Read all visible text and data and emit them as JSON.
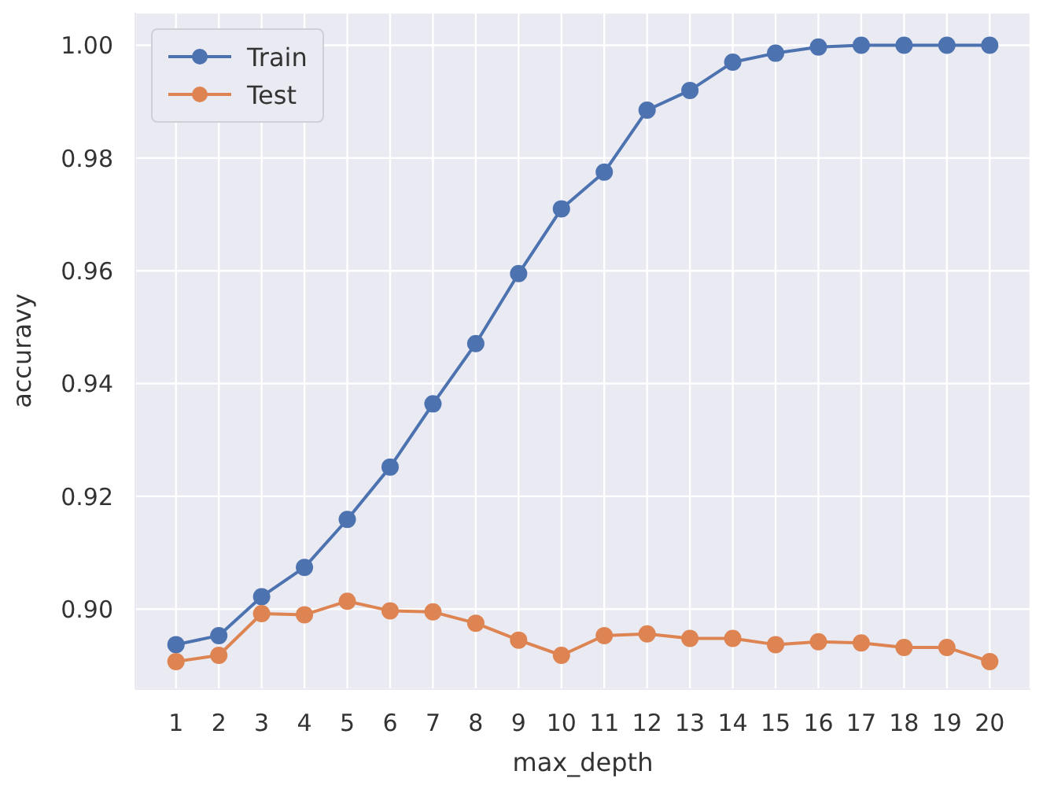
{
  "chart_data": {
    "type": "line",
    "xlabel": "max_depth",
    "ylabel": "accuravy",
    "x": [
      1,
      2,
      3,
      4,
      5,
      6,
      7,
      8,
      9,
      10,
      11,
      12,
      13,
      14,
      15,
      16,
      17,
      18,
      19,
      20
    ],
    "series": [
      {
        "name": "Train",
        "color": "#4c72b0",
        "values": [
          0.8937,
          0.8953,
          0.9022,
          0.9074,
          0.9159,
          0.9252,
          0.9364,
          0.9471,
          0.9595,
          0.971,
          0.9775,
          0.9885,
          0.992,
          0.997,
          0.9986,
          0.9997,
          1.0,
          1.0,
          1.0,
          1.0
        ]
      },
      {
        "name": "Test",
        "color": "#dd8452",
        "values": [
          0.8907,
          0.8918,
          0.8992,
          0.899,
          0.9014,
          0.8997,
          0.8995,
          0.8975,
          0.8945,
          0.8918,
          0.8953,
          0.8956,
          0.8948,
          0.8948,
          0.8937,
          0.8942,
          0.894,
          0.8932,
          0.8932,
          0.8907
        ]
      }
    ],
    "xlim": [
      0.05,
      20.95
    ],
    "xticks": [
      1,
      2,
      3,
      4,
      5,
      6,
      7,
      8,
      9,
      10,
      11,
      12,
      13,
      14,
      15,
      16,
      17,
      18,
      19,
      20
    ],
    "ylim": [
      0.8858,
      1.0058
    ],
    "yticks": [
      {
        "value": 0.9,
        "label": "0.90"
      },
      {
        "value": 0.92,
        "label": "0.92"
      },
      {
        "value": 0.94,
        "label": "0.94"
      },
      {
        "value": 0.96,
        "label": "0.96"
      },
      {
        "value": 0.98,
        "label": "0.98"
      },
      {
        "value": 1.0,
        "label": "1.00"
      }
    ],
    "grid": true,
    "legend": "top left",
    "marker": "circle",
    "line_style": "solid"
  }
}
